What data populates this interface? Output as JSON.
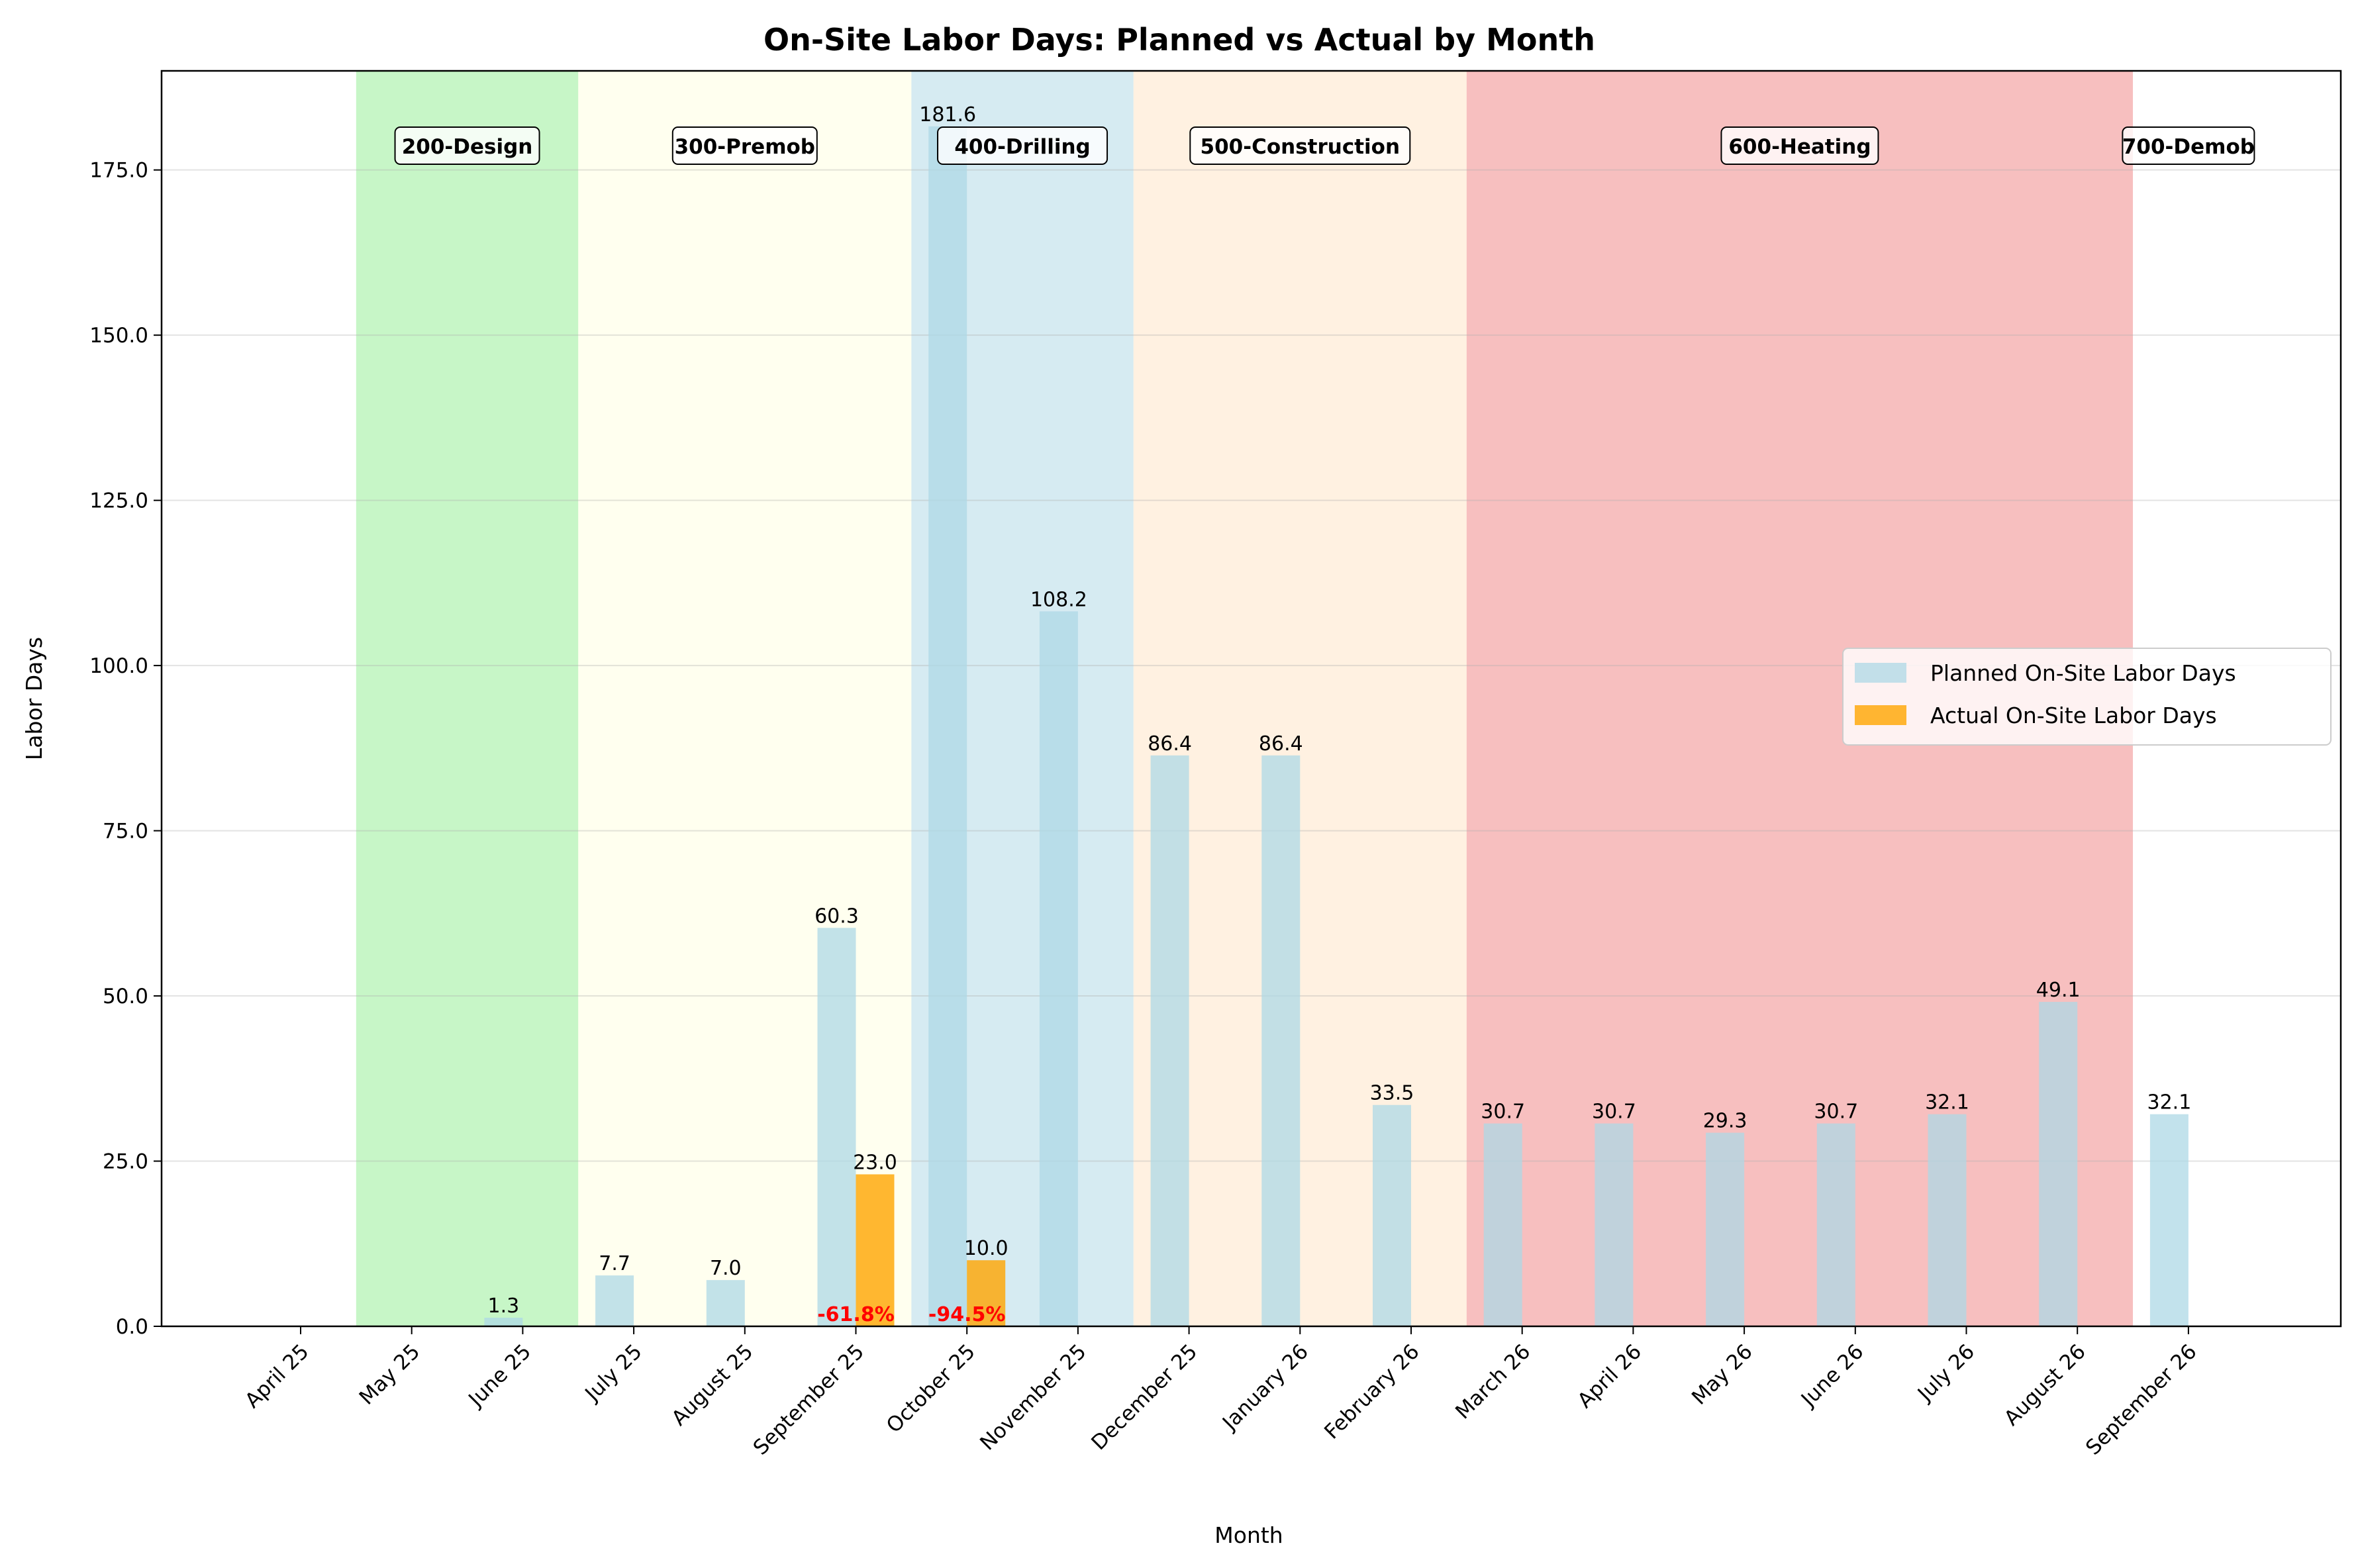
{
  "chart_data": {
    "type": "bar",
    "title": "On-Site Labor Days: Planned vs Actual by Month",
    "xlabel": "Month",
    "ylabel": "Labor Days",
    "ylim": [
      0,
      190
    ],
    "yticks": [
      0,
      25,
      50,
      75,
      100,
      125,
      150,
      175
    ],
    "ytick_labels": [
      "0.0",
      "25.0",
      "50.0",
      "75.0",
      "100.0",
      "125.0",
      "150.0",
      "175.0"
    ],
    "grid": true,
    "legend_position": "center-right",
    "categories": [
      "April 25",
      "May 25",
      "June 25",
      "July 25",
      "August 25",
      "September 25",
      "October 25",
      "November 25",
      "December 25",
      "January 26",
      "February 26",
      "March 26",
      "April 26",
      "May 26",
      "June 26",
      "July 26",
      "August 26",
      "September 26"
    ],
    "series": [
      {
        "name": "Planned On-Site Labor Days",
        "color": "#add8e6",
        "values": [
          0,
          0,
          1.3,
          7.7,
          7.0,
          60.3,
          181.6,
          108.2,
          86.4,
          86.4,
          33.5,
          30.7,
          30.7,
          29.3,
          30.7,
          32.1,
          49.1,
          32.1
        ],
        "labels": [
          "",
          "",
          "1.3",
          "7.7",
          "7.0",
          "60.3",
          "181.6",
          "108.2",
          "86.4",
          "86.4",
          "33.5",
          "30.7",
          "30.7",
          "29.3",
          "30.7",
          "32.1",
          "49.1",
          "32.1"
        ]
      },
      {
        "name": "Actual On-Site Labor Days",
        "color": "#ffa500",
        "values": [
          0,
          0,
          0,
          0,
          0,
          23.0,
          10.0,
          0,
          0,
          0,
          0,
          0,
          0,
          0,
          0,
          0,
          0,
          0
        ],
        "labels": [
          "",
          "",
          "",
          "",
          "",
          "23.0",
          "10.0",
          "",
          "",
          "",
          "",
          "",
          "",
          "",
          "",
          "",
          "",
          ""
        ]
      }
    ],
    "variance_labels": [
      {
        "category": "September 25",
        "text": "-61.8%",
        "color": "#ff0000"
      },
      {
        "category": "October 25",
        "text": "-94.5%",
        "color": "#ff0000"
      }
    ],
    "phases": [
      {
        "name": "200-Design",
        "color": "#90ee90",
        "start_month": "May 25",
        "end_month": "June 25"
      },
      {
        "name": "300-Premob",
        "color": "#ffffe0",
        "start_month": "July 25",
        "end_month": "September 25"
      },
      {
        "name": "400-Drilling",
        "color": "#add8e6",
        "start_month": "October 25",
        "end_month": "November 25"
      },
      {
        "name": "500-Construction",
        "color": "#ffe4c4",
        "start_month": "December 25",
        "end_month": "February 26"
      },
      {
        "name": "600-Heating",
        "color": "#f08080",
        "start_month": "March 26",
        "end_month": "August 26"
      },
      {
        "name": "700-Demob",
        "color": "#ffffff",
        "start_month": "September 26",
        "end_month": "September 26"
      }
    ]
  }
}
